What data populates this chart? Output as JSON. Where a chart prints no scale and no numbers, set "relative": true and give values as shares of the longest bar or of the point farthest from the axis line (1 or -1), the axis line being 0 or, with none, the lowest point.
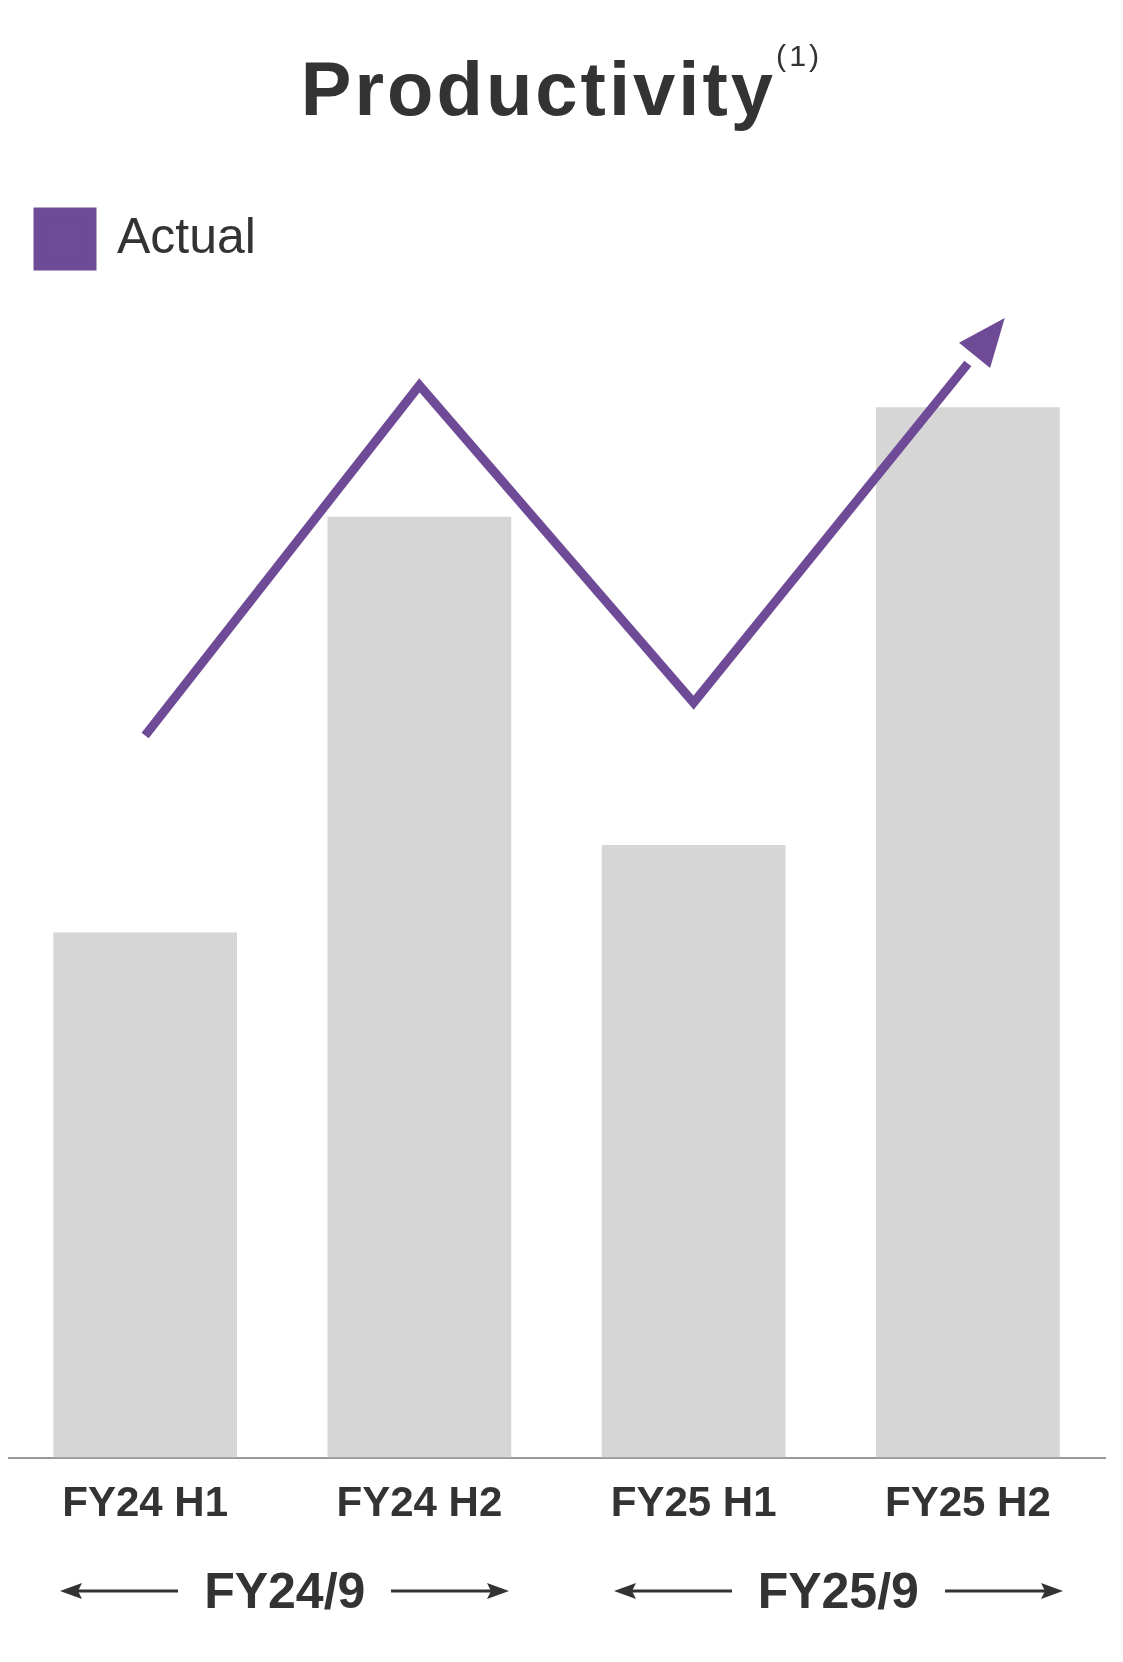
{
  "chart_data": {
    "type": "bar",
    "title": "Productivity$^{(1)}$",
    "categories": [
      "FY24 H1",
      "FY24 H2",
      "FY25 H1",
      "FY25 H2"
    ],
    "relative": true,
    "legend": "top left",
    "grid": false,
    "series": [
      {
        "color": "#d6d6d6",
        "values": [
          0.48,
          0.86,
          0.56,
          0.96
        ]
      },
      {
        "type": "line",
        "name": "Actual",
        "color": "#6f4a96",
        "values": [
          0.66,
          0.98,
          0.69,
          1
        ]
      }
    ],
    "annotations": [
      "FY24/9",
      "FY25/9"
    ]
  }
}
